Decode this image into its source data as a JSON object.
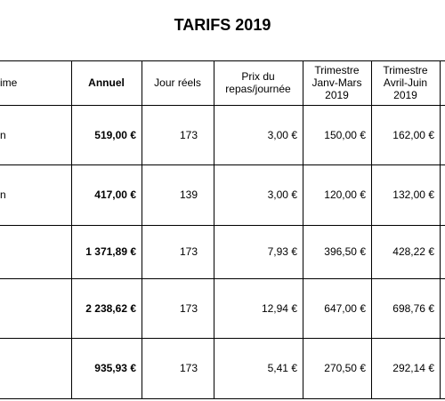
{
  "title": "TARIFS 2019",
  "table": {
    "header": [
      "ime",
      "Annuel",
      "Jour réels",
      "Prix du\nrepas/journée",
      "Trimestre\nJanv-Mars\n2019",
      "Trimestre\nAvril-Juin\n2019"
    ],
    "rows": [
      [
        "n",
        "519,00 €",
        "173",
        "3,00 €",
        "150,00 €",
        "162,00 €"
      ],
      [
        "n",
        "417,00 €",
        "139",
        "3,00 €",
        "120,00 €",
        "132,00 €"
      ],
      [
        "",
        "1 371,89 €",
        "173",
        "7,93 €",
        "396,50 €",
        "428,22 €"
      ],
      [
        "",
        "2 238,62 €",
        "173",
        "12,94 €",
        "647,00 €",
        "698,76 €"
      ],
      [
        "",
        "935,93 €",
        "173",
        "5,41 €",
        "270,50 €",
        "292,14 €"
      ]
    ]
  }
}
